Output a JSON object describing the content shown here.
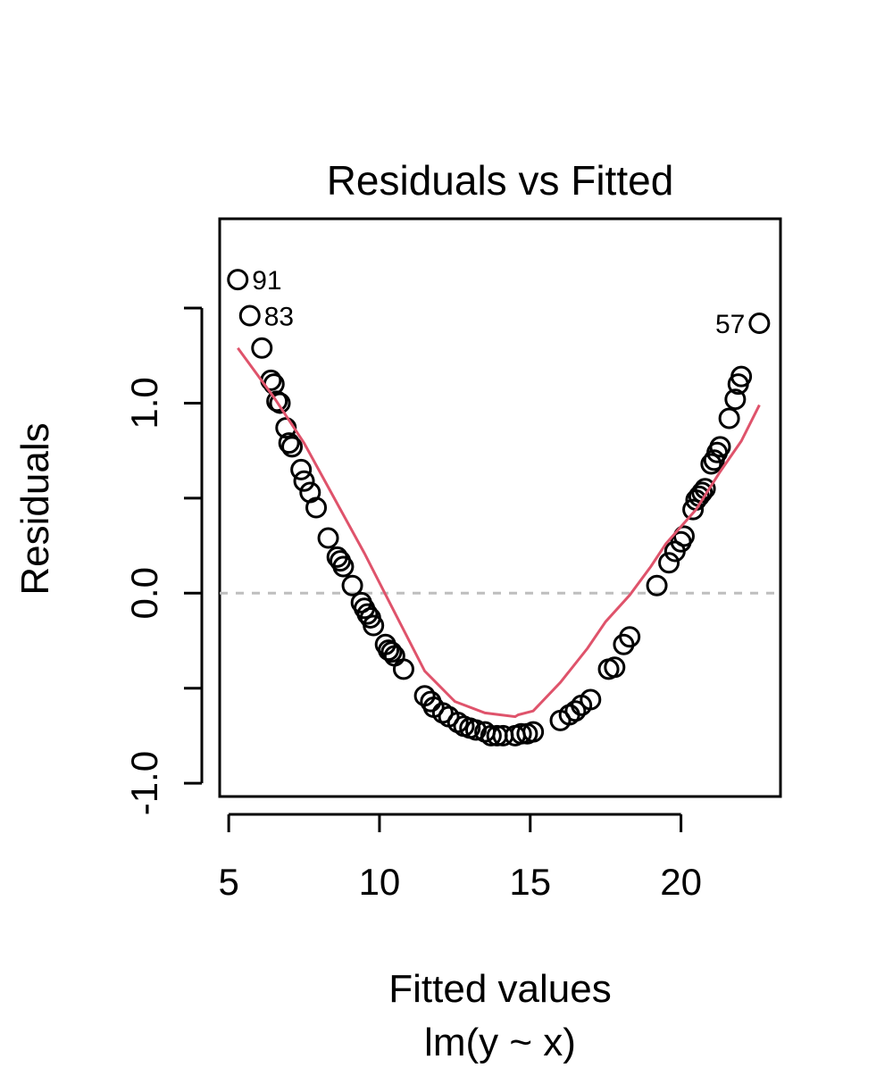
{
  "chart_data": {
    "type": "scatter",
    "title": "Residuals vs Fitted",
    "xlabel": "Fitted values",
    "xsublabel": "lm(y ~ x)",
    "ylabel": "Residuals",
    "xlim": [
      4.7,
      23.3
    ],
    "ylim": [
      -1.07,
      1.97
    ],
    "xticks": [
      {
        "value": 5,
        "label": "5"
      },
      {
        "value": 10,
        "label": "10"
      },
      {
        "value": 15,
        "label": "15"
      },
      {
        "value": 20,
        "label": "20"
      }
    ],
    "yticks": [
      {
        "value": -1.0,
        "label": "-1.0"
      },
      {
        "value": -0.5,
        "label": ""
      },
      {
        "value": 0.0,
        "label": "0.0"
      },
      {
        "value": 0.5,
        "label": ""
      },
      {
        "value": 1.0,
        "label": "1.0"
      },
      {
        "value": 1.5,
        "label": ""
      }
    ],
    "reference_line": {
      "y": 0,
      "style": "dashed",
      "color": "#bebebe"
    },
    "colors": {
      "points": "#000000",
      "smoother": "#df536b",
      "reference": "#bebebe"
    },
    "grid": false,
    "series": [
      {
        "points": [
          [
            5.3,
            1.65
          ],
          [
            5.7,
            1.46
          ],
          [
            6.1,
            1.29
          ],
          [
            6.4,
            1.12
          ],
          [
            6.5,
            1.1
          ],
          [
            6.6,
            1.01
          ],
          [
            6.7,
            1.0
          ],
          [
            6.9,
            0.87
          ],
          [
            7.0,
            0.79
          ],
          [
            7.1,
            0.77
          ],
          [
            7.4,
            0.65
          ],
          [
            7.5,
            0.59
          ],
          [
            7.7,
            0.53
          ],
          [
            7.9,
            0.45
          ],
          [
            8.3,
            0.29
          ],
          [
            8.6,
            0.19
          ],
          [
            8.7,
            0.17
          ],
          [
            8.8,
            0.14
          ],
          [
            9.1,
            0.04
          ],
          [
            9.4,
            -0.05
          ],
          [
            9.5,
            -0.08
          ],
          [
            9.6,
            -0.11
          ],
          [
            9.7,
            -0.13
          ],
          [
            9.8,
            -0.17
          ],
          [
            10.2,
            -0.27
          ],
          [
            10.3,
            -0.3
          ],
          [
            10.4,
            -0.31
          ],
          [
            10.5,
            -0.33
          ],
          [
            10.8,
            -0.4
          ],
          [
            11.5,
            -0.54
          ],
          [
            11.7,
            -0.57
          ],
          [
            11.8,
            -0.6
          ],
          [
            12.1,
            -0.63
          ],
          [
            12.3,
            -0.65
          ],
          [
            12.6,
            -0.68
          ],
          [
            12.8,
            -0.7
          ],
          [
            13.0,
            -0.71
          ],
          [
            13.2,
            -0.72
          ],
          [
            13.5,
            -0.73
          ],
          [
            13.7,
            -0.75
          ],
          [
            13.9,
            -0.75
          ],
          [
            14.1,
            -0.75
          ],
          [
            14.5,
            -0.75
          ],
          [
            14.7,
            -0.74
          ],
          [
            14.9,
            -0.74
          ],
          [
            15.1,
            -0.73
          ],
          [
            16.0,
            -0.67
          ],
          [
            16.3,
            -0.64
          ],
          [
            16.5,
            -0.62
          ],
          [
            16.7,
            -0.59
          ],
          [
            17.0,
            -0.56
          ],
          [
            17.6,
            -0.4
          ],
          [
            17.8,
            -0.39
          ],
          [
            18.1,
            -0.27
          ],
          [
            18.3,
            -0.23
          ],
          [
            19.2,
            0.04
          ],
          [
            19.6,
            0.16
          ],
          [
            19.8,
            0.22
          ],
          [
            20.0,
            0.27
          ],
          [
            20.1,
            0.3
          ],
          [
            20.4,
            0.44
          ],
          [
            20.5,
            0.49
          ],
          [
            20.6,
            0.51
          ],
          [
            20.7,
            0.53
          ],
          [
            20.8,
            0.55
          ],
          [
            21.0,
            0.68
          ],
          [
            21.1,
            0.7
          ],
          [
            21.2,
            0.74
          ],
          [
            21.3,
            0.77
          ],
          [
            21.6,
            0.92
          ],
          [
            21.8,
            1.02
          ],
          [
            21.9,
            1.1
          ],
          [
            22.0,
            1.14
          ],
          [
            22.6,
            1.42
          ]
        ]
      },
      {
        "type": "line",
        "points": [
          [
            5.3,
            1.29
          ],
          [
            6.5,
            1.03
          ],
          [
            7.5,
            0.79
          ],
          [
            8.5,
            0.5
          ],
          [
            9.5,
            0.21
          ],
          [
            10.5,
            -0.1
          ],
          [
            11.5,
            -0.41
          ],
          [
            12.5,
            -0.57
          ],
          [
            13.5,
            -0.63
          ],
          [
            14.5,
            -0.65
          ],
          [
            14.6,
            -0.64
          ],
          [
            15.1,
            -0.62
          ],
          [
            16.0,
            -0.47
          ],
          [
            16.9,
            -0.29
          ],
          [
            17.5,
            -0.15
          ],
          [
            18.3,
            -0.01
          ],
          [
            19.0,
            0.14
          ],
          [
            19.5,
            0.26
          ],
          [
            20.5,
            0.44
          ],
          [
            21.3,
            0.64
          ],
          [
            22.0,
            0.8
          ],
          [
            22.6,
            0.99
          ]
        ]
      }
    ],
    "point_labels": [
      {
        "x": 5.3,
        "y": 1.65,
        "text": "91",
        "side": "right"
      },
      {
        "x": 5.7,
        "y": 1.46,
        "text": "83",
        "side": "right"
      },
      {
        "x": 22.6,
        "y": 1.42,
        "text": "57",
        "side": "left"
      }
    ]
  }
}
